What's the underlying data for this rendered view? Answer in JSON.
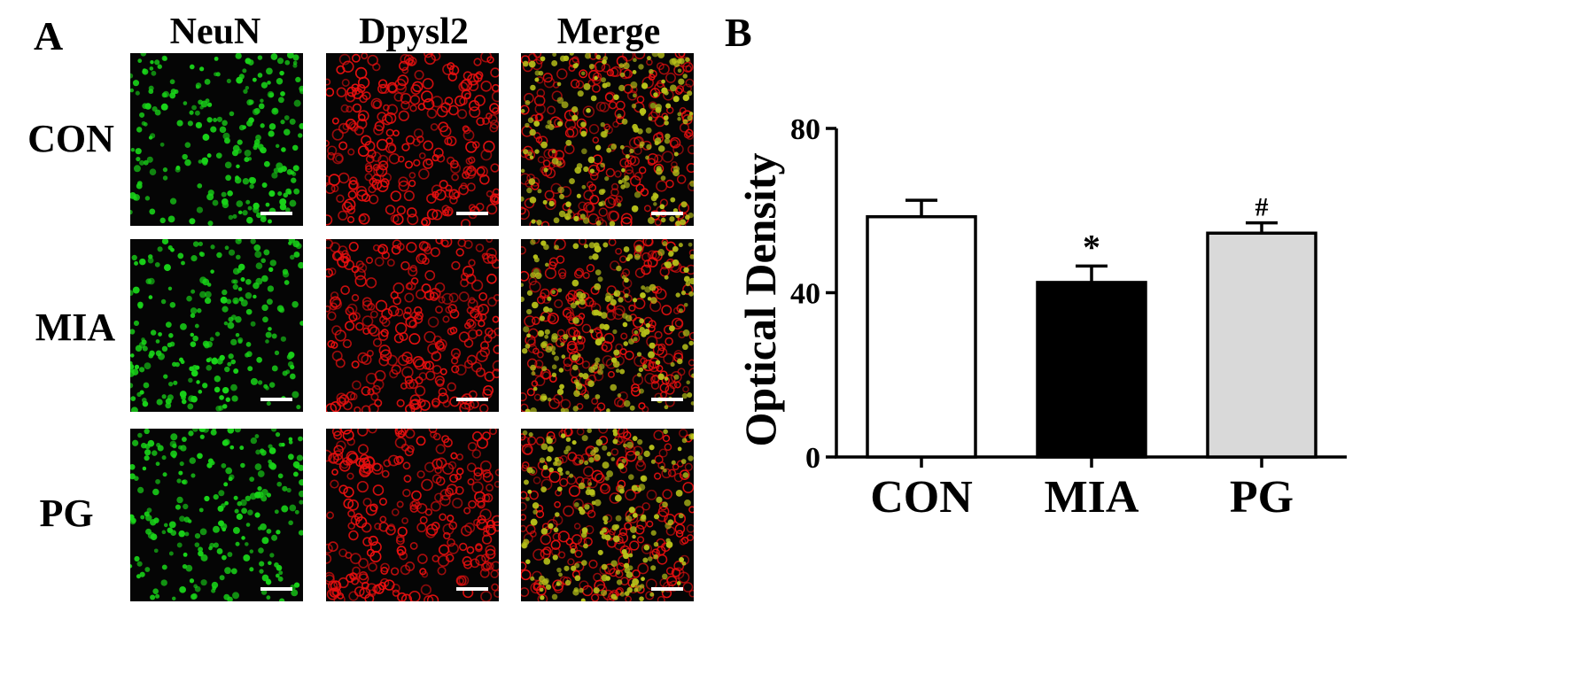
{
  "figure": {
    "panel_a_label": "A",
    "panel_b_label": "B",
    "columns": [
      "NeuN",
      "Dpysl2",
      "Merge"
    ],
    "rows": [
      "CON",
      "MIA",
      "PG"
    ],
    "channel_colors": {
      "NeuN": "#19d419",
      "Dpysl2": "#e81010",
      "Merge": "#b8c21a",
      "background": "#050505"
    }
  },
  "chart_data": {
    "type": "bar",
    "categories": [
      "CON",
      "MIA",
      "PG"
    ],
    "values": [
      58.5,
      42.5,
      54.5
    ],
    "errors": [
      4,
      4,
      2.5
    ],
    "annotations": [
      "",
      "*",
      "#"
    ],
    "bar_colors": [
      "#ffffff",
      "#000000",
      "#d9d9d9"
    ],
    "ylabel": "Optical Density",
    "ylim": [
      0,
      80
    ],
    "yticks": [
      0,
      40,
      80
    ],
    "grid": false
  }
}
